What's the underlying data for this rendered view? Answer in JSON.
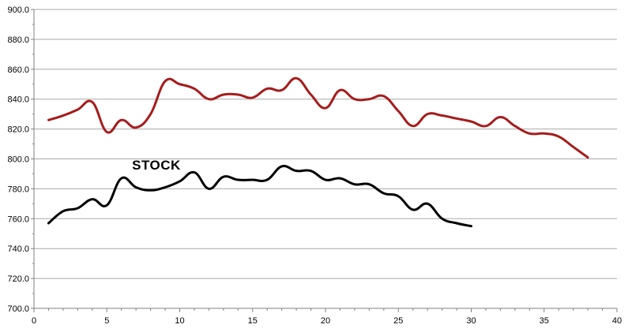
{
  "chart_data": {
    "type": "line",
    "title": "",
    "xlabel": "",
    "ylabel": "",
    "xlim": [
      0,
      40
    ],
    "ylim": [
      700,
      900
    ],
    "x_ticks": [
      "0",
      "5",
      "10",
      "15",
      "20",
      "25",
      "30",
      "35",
      "40"
    ],
    "y_ticks": [
      "700.0",
      "720.0",
      "740.0",
      "760.0",
      "780.0",
      "800.0",
      "820.0",
      "840.0",
      "860.0",
      "880.0",
      "900.0"
    ],
    "grid": "horizontal",
    "legend": "none",
    "annotations": [
      {
        "text": "STOCK",
        "x": 8.4,
        "y": 793
      }
    ],
    "series": [
      {
        "name": "",
        "color": "#a61c1c",
        "x": [
          1,
          2,
          3,
          4,
          5,
          6,
          7,
          8,
          9,
          10,
          11,
          12,
          13,
          14,
          15,
          16,
          17,
          18,
          19,
          20,
          21,
          22,
          23,
          24,
          25,
          26,
          27,
          28,
          29,
          30,
          31,
          32,
          33,
          34,
          35,
          36,
          37,
          38
        ],
        "y": [
          826,
          829,
          833,
          838,
          818,
          826,
          821,
          830,
          852,
          850,
          847,
          840,
          843,
          843,
          841,
          847,
          846,
          854,
          843,
          834,
          846,
          840,
          840,
          842,
          832,
          822,
          830,
          829,
          827,
          825,
          822,
          828,
          822,
          817,
          817,
          815,
          808,
          801
        ]
      },
      {
        "name": "",
        "color": "#000000",
        "x": [
          1,
          2,
          3,
          4,
          5,
          6,
          7,
          8,
          9,
          10,
          11,
          12,
          13,
          14,
          15,
          16,
          17,
          18,
          19,
          20,
          21,
          22,
          23,
          24,
          25,
          26,
          27,
          28,
          29,
          30
        ],
        "y": [
          757,
          765,
          767,
          773,
          769,
          787,
          781,
          779,
          781,
          785,
          791,
          780,
          788,
          786,
          786,
          786,
          795,
          792,
          792,
          786,
          787,
          783,
          783,
          777,
          775,
          766,
          770,
          760,
          757,
          755
        ]
      }
    ]
  }
}
